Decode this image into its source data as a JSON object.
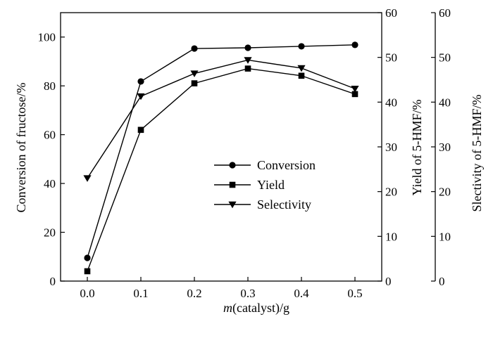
{
  "chart_data": {
    "type": "line",
    "x": [
      0.0,
      0.1,
      0.2,
      0.3,
      0.4,
      0.5
    ],
    "x_ticks": [
      "0.0",
      "0.1",
      "0.2",
      "0.3",
      "0.4",
      "0.5"
    ],
    "xlim": [
      -0.05,
      0.55
    ],
    "xlabel_italic": "m",
    "xlabel_rest": "(catalyst)/g",
    "axes": {
      "left": {
        "label": "Conversion of fructose/%",
        "ylim": [
          0,
          110
        ],
        "ticks": [
          0,
          20,
          40,
          60,
          80,
          100
        ],
        "tick_labels": [
          "0",
          "20",
          "40",
          "60",
          "80",
          "100"
        ]
      },
      "right1": {
        "label": "Yield of 5-HMF/%",
        "ylim": [
          0,
          60
        ],
        "ticks": [
          0,
          10,
          20,
          30,
          40,
          50,
          60
        ],
        "tick_labels": [
          "0",
          "10",
          "20",
          "30",
          "40",
          "50",
          "60"
        ]
      },
      "right2": {
        "label": "Slectivity of 5-HMF/%",
        "ylim": [
          0,
          60
        ],
        "ticks": [
          0,
          10,
          20,
          30,
          40,
          50,
          60
        ],
        "tick_labels": [
          "0",
          "10",
          "20",
          "30",
          "40",
          "50",
          "60"
        ]
      }
    },
    "series": [
      {
        "name": "Conversion",
        "axis": "left",
        "marker": "circle",
        "values": [
          9.5,
          81.8,
          95.3,
          95.6,
          96.2,
          96.8
        ]
      },
      {
        "name": "Yield",
        "axis": "right1",
        "marker": "square",
        "values": [
          2.2,
          33.8,
          44.2,
          47.5,
          45.9,
          41.8
        ]
      },
      {
        "name": "Selectivity",
        "axis": "right2",
        "marker": "triangle-down",
        "values": [
          23.0,
          41.3,
          46.4,
          49.4,
          47.6,
          43.0
        ]
      }
    ],
    "legend_position": "center-right",
    "grid": false
  }
}
